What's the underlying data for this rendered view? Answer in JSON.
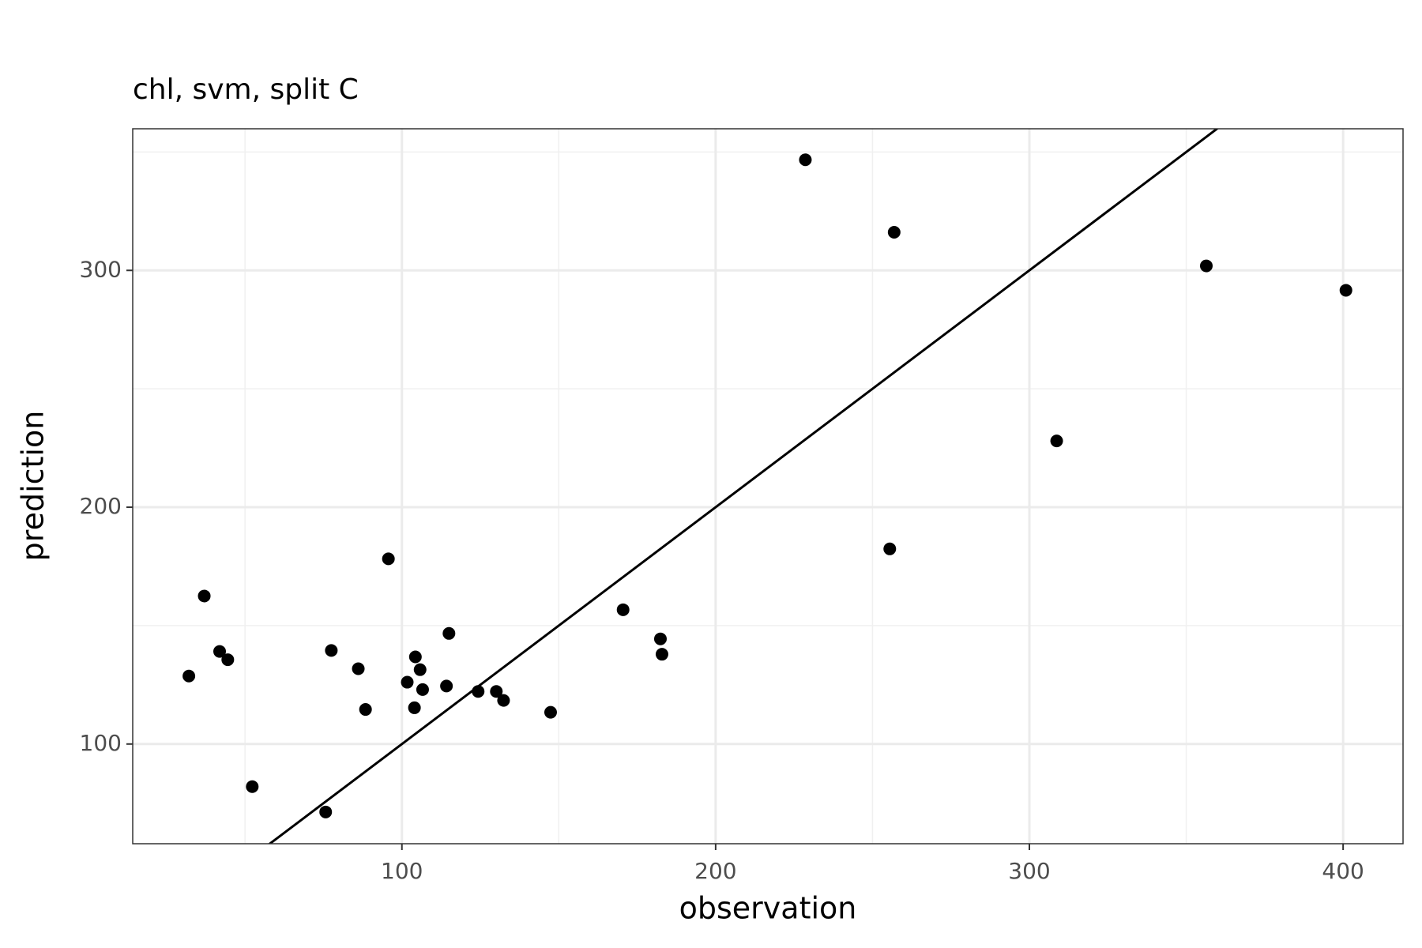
{
  "chart_data": {
    "type": "scatter",
    "title": "chl, svm, split C",
    "x_label": "observation",
    "y_label": "prediction",
    "x": [
      32.1,
      37.0,
      41.9,
      44.5,
      52.3,
      75.7,
      77.5,
      86.1,
      88.4,
      95.7,
      101.7,
      104.0,
      104.3,
      105.8,
      106.6,
      114.2,
      115.0,
      124.3,
      130.1,
      132.4,
      147.4,
      170.5,
      182.4,
      182.9,
      228.6,
      255.5,
      256.9,
      308.7,
      356.4,
      400.9
    ],
    "values": [
      128.7,
      162.5,
      139.1,
      135.6,
      82.0,
      71.3,
      139.5,
      131.8,
      114.6,
      178.2,
      126.1,
      115.3,
      136.8,
      131.4,
      123.0,
      124.5,
      146.7,
      122.2,
      122.2,
      118.4,
      113.4,
      156.7,
      144.4,
      137.9,
      346.7,
      182.4,
      316.1,
      228.0,
      301.9,
      291.6
    ],
    "color": "#000000",
    "abline": {
      "intercept": 0,
      "slope": 1,
      "color": "#000000"
    },
    "xlim": [
      14.2,
      419.1
    ],
    "ylim": [
      57.9,
      359.8
    ],
    "xticks": [
      100,
      200,
      300,
      400
    ],
    "yticks": [
      100,
      200,
      300
    ],
    "xminor": [
      50,
      150,
      250,
      350
    ],
    "yminor": [
      150,
      250,
      350
    ],
    "grid": true
  }
}
